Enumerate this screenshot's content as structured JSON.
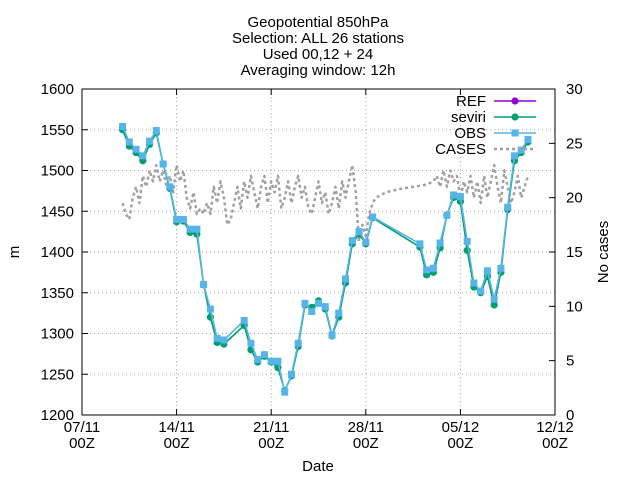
{
  "chart_data": {
    "type": "line",
    "title": [
      "Geopotential 850hPa",
      "Selection: ALL     26 stations",
      "Used 00,12 + 24",
      "Averaging window: 12h"
    ],
    "xlabel": "Date",
    "ylabel": "m",
    "y2label": "No cases",
    "xlim": [
      "2023-11-07T00:00",
      "2023-12-12T00:00"
    ],
    "ylim": [
      1200,
      1600
    ],
    "y2lim": [
      0,
      30
    ],
    "xticks": [
      {
        "x": "2023-11-07T00:00",
        "line1": "07/11",
        "line2": "00Z"
      },
      {
        "x": "2023-11-14T00:00",
        "line1": "14/11",
        "line2": "00Z"
      },
      {
        "x": "2023-11-21T00:00",
        "line1": "21/11",
        "line2": "00Z"
      },
      {
        "x": "2023-11-28T00:00",
        "line1": "28/11",
        "line2": "00Z"
      },
      {
        "x": "2023-12-05T00:00",
        "line1": "05/12",
        "line2": "00Z"
      },
      {
        "x": "2023-12-12T00:00",
        "line1": "12/12",
        "line2": "00Z"
      }
    ],
    "yticks": [
      1200,
      1250,
      1300,
      1350,
      1400,
      1450,
      1500,
      1550,
      1600
    ],
    "y2ticks": [
      0,
      5,
      10,
      15,
      20,
      25,
      30
    ],
    "grid": true,
    "legend_position": "top-right",
    "series": [
      {
        "name": "REF",
        "color": "#9400d3",
        "marker": "filled-circle",
        "axis": "y",
        "points": [
          [
            "2023-11-10T00:00",
            1552
          ]
        ]
      },
      {
        "name": "seviri",
        "color": "#009e73",
        "marker": "filled-circle",
        "axis": "y",
        "points": [
          [
            "2023-11-10T00:00",
            1550
          ],
          [
            "2023-11-10T12:00",
            1530
          ],
          [
            "2023-11-11T00:00",
            1522
          ],
          [
            "2023-11-11T12:00",
            1512
          ],
          [
            "2023-11-12T00:00",
            1532
          ],
          [
            "2023-11-12T12:00",
            1546
          ],
          [
            "2023-11-13T00:00",
            1508
          ],
          [
            "2023-11-13T12:00",
            1478
          ],
          [
            "2023-11-14T00:00",
            1437
          ],
          [
            "2023-11-14T12:00",
            1438
          ],
          [
            "2023-11-15T00:00",
            1424
          ],
          [
            "2023-11-15T12:00",
            1422
          ],
          [
            "2023-11-16T00:00",
            1360
          ],
          [
            "2023-11-16T12:00",
            1320
          ],
          [
            "2023-11-17T00:00",
            1289
          ],
          [
            "2023-11-17T12:00",
            1287
          ],
          [
            "2023-11-19T00:00",
            1310
          ],
          [
            "2023-11-19T12:00",
            1280
          ],
          [
            "2023-11-20T00:00",
            1265
          ],
          [
            "2023-11-20T12:00",
            1272
          ],
          [
            "2023-11-21T00:00",
            1265
          ],
          [
            "2023-11-21T12:00",
            1258
          ],
          [
            "2023-11-22T00:00",
            1230
          ],
          [
            "2023-11-22T12:00",
            1248
          ],
          [
            "2023-11-23T00:00",
            1284
          ],
          [
            "2023-11-23T12:00",
            1335
          ],
          [
            "2023-11-24T00:00",
            1332
          ],
          [
            "2023-11-24T12:00",
            1340
          ],
          [
            "2023-11-25T00:00",
            1330
          ],
          [
            "2023-11-25T12:00",
            1297
          ],
          [
            "2023-11-26T00:00",
            1320
          ],
          [
            "2023-11-26T12:00",
            1362
          ],
          [
            "2023-11-27T00:00",
            1410
          ],
          [
            "2023-11-27T12:00",
            1422
          ],
          [
            "2023-11-28T00:00",
            1410
          ],
          [
            "2023-11-28T12:00",
            1442
          ],
          [
            "2023-12-02T00:00",
            1406
          ],
          [
            "2023-12-02T12:00",
            1372
          ],
          [
            "2023-12-03T00:00",
            1375
          ],
          [
            "2023-12-03T12:00",
            1405
          ],
          [
            "2023-12-04T00:00",
            1445
          ],
          [
            "2023-12-04T12:00",
            1467
          ],
          [
            "2023-12-05T00:00",
            1462
          ],
          [
            "2023-12-05T12:00",
            1402
          ],
          [
            "2023-12-06T00:00",
            1357
          ],
          [
            "2023-12-06T12:00",
            1350
          ],
          [
            "2023-12-07T00:00",
            1370
          ],
          [
            "2023-12-07T12:00",
            1335
          ],
          [
            "2023-12-08T00:00",
            1375
          ],
          [
            "2023-12-08T12:00",
            1452
          ],
          [
            "2023-12-09T00:00",
            1512
          ],
          [
            "2023-12-09T12:00",
            1522
          ],
          [
            "2023-12-10T00:00",
            1535
          ]
        ]
      },
      {
        "name": "OBS",
        "color": "#56b4e9",
        "marker": "filled-square",
        "axis": "y",
        "points": [
          [
            "2023-11-10T00:00",
            1554
          ],
          [
            "2023-11-10T12:00",
            1535
          ],
          [
            "2023-11-11T00:00",
            1526
          ],
          [
            "2023-11-11T12:00",
            1518
          ],
          [
            "2023-11-12T00:00",
            1536
          ],
          [
            "2023-11-12T12:00",
            1549
          ],
          [
            "2023-11-13T00:00",
            1508
          ],
          [
            "2023-11-13T12:00",
            1480
          ],
          [
            "2023-11-14T00:00",
            1440
          ],
          [
            "2023-11-14T12:00",
            1440
          ],
          [
            "2023-11-15T00:00",
            1428
          ],
          [
            "2023-11-15T12:00",
            1428
          ],
          [
            "2023-11-16T00:00",
            1360
          ],
          [
            "2023-11-16T12:00",
            1330
          ],
          [
            "2023-11-17T00:00",
            1294
          ],
          [
            "2023-11-17T12:00",
            1292
          ],
          [
            "2023-11-19T00:00",
            1316
          ],
          [
            "2023-11-19T12:00",
            1288
          ],
          [
            "2023-11-20T00:00",
            1268
          ],
          [
            "2023-11-20T12:00",
            1274
          ],
          [
            "2023-11-21T00:00",
            1266
          ],
          [
            "2023-11-21T12:00",
            1266
          ],
          [
            "2023-11-22T00:00",
            1228
          ],
          [
            "2023-11-22T12:00",
            1250
          ],
          [
            "2023-11-23T00:00",
            1288
          ],
          [
            "2023-11-23T12:00",
            1337
          ],
          [
            "2023-11-24T00:00",
            1327
          ],
          [
            "2023-11-24T12:00",
            1337
          ],
          [
            "2023-11-25T00:00",
            1333
          ],
          [
            "2023-11-25T12:00",
            1298
          ],
          [
            "2023-11-26T00:00",
            1325
          ],
          [
            "2023-11-26T12:00",
            1367
          ],
          [
            "2023-11-27T00:00",
            1414
          ],
          [
            "2023-11-27T12:00",
            1425
          ],
          [
            "2023-11-28T00:00",
            1412
          ],
          [
            "2023-11-28T12:00",
            1443
          ],
          [
            "2023-12-02T00:00",
            1410
          ],
          [
            "2023-12-02T12:00",
            1378
          ],
          [
            "2023-12-03T00:00",
            1380
          ],
          [
            "2023-12-03T12:00",
            1411
          ],
          [
            "2023-12-04T00:00",
            1445
          ],
          [
            "2023-12-04T12:00",
            1470
          ],
          [
            "2023-12-05T00:00",
            1468
          ],
          [
            "2023-12-05T12:00",
            1413
          ],
          [
            "2023-12-06T00:00",
            1362
          ],
          [
            "2023-12-06T12:00",
            1352
          ],
          [
            "2023-12-07T00:00",
            1377
          ],
          [
            "2023-12-07T12:00",
            1342
          ],
          [
            "2023-12-08T00:00",
            1380
          ],
          [
            "2023-12-08T12:00",
            1455
          ],
          [
            "2023-12-09T00:00",
            1518
          ],
          [
            "2023-12-09T12:00",
            1525
          ],
          [
            "2023-12-10T00:00",
            1538
          ]
        ]
      },
      {
        "name": "CASES",
        "color": "#a0a0a0",
        "marker": "none",
        "dashed": true,
        "axis": "y2",
        "points": [
          [
            "2023-11-10T00:00",
            19.5
          ],
          [
            "2023-11-10T06:00",
            18.5
          ],
          [
            "2023-11-10T12:00",
            18.0
          ],
          [
            "2023-11-10T18:00",
            20.0
          ],
          [
            "2023-11-11T00:00",
            21.0
          ],
          [
            "2023-11-11T06:00",
            19.5
          ],
          [
            "2023-11-11T12:00",
            22.0
          ],
          [
            "2023-11-11T18:00",
            21.0
          ],
          [
            "2023-11-12T00:00",
            22.5
          ],
          [
            "2023-11-12T06:00",
            21.5
          ],
          [
            "2023-11-12T12:00",
            23.0
          ],
          [
            "2023-11-12T18:00",
            21.5
          ],
          [
            "2023-11-13T00:00",
            22.5
          ],
          [
            "2023-11-13T06:00",
            21.0
          ],
          [
            "2023-11-13T12:00",
            22.0
          ],
          [
            "2023-11-13T18:00",
            20.5
          ],
          [
            "2023-11-14T00:00",
            23.0
          ],
          [
            "2023-11-14T06:00",
            21.5
          ],
          [
            "2023-11-14T12:00",
            22.5
          ],
          [
            "2023-11-14T18:00",
            20.0
          ],
          [
            "2023-11-15T00:00",
            19.0
          ],
          [
            "2023-11-15T06:00",
            20.5
          ],
          [
            "2023-11-15T12:00",
            18.5
          ],
          [
            "2023-11-15T18:00",
            19.0
          ],
          [
            "2023-11-16T00:00",
            18.5
          ],
          [
            "2023-11-16T06:00",
            19.5
          ],
          [
            "2023-11-16T12:00",
            18.5
          ],
          [
            "2023-11-16T18:00",
            21.0
          ],
          [
            "2023-11-17T00:00",
            19.5
          ],
          [
            "2023-11-17T06:00",
            21.5
          ],
          [
            "2023-11-17T12:00",
            20.0
          ],
          [
            "2023-11-17T18:00",
            17.5
          ],
          [
            "2023-11-18T00:00",
            18.0
          ],
          [
            "2023-11-18T06:00",
            19.5
          ],
          [
            "2023-11-18T12:00",
            21.0
          ],
          [
            "2023-11-18T18:00",
            19.0
          ],
          [
            "2023-11-19T00:00",
            21.5
          ],
          [
            "2023-11-19T06:00",
            20.0
          ],
          [
            "2023-11-19T12:00",
            22.0
          ],
          [
            "2023-11-19T18:00",
            20.5
          ],
          [
            "2023-11-20T00:00",
            19.0
          ],
          [
            "2023-11-20T06:00",
            21.0
          ],
          [
            "2023-11-20T12:00",
            22.0
          ],
          [
            "2023-11-20T18:00",
            19.5
          ],
          [
            "2023-11-21T00:00",
            21.5
          ],
          [
            "2023-11-21T06:00",
            20.5
          ],
          [
            "2023-11-21T12:00",
            22.0
          ],
          [
            "2023-11-21T18:00",
            19.0
          ],
          [
            "2023-11-22T00:00",
            20.0
          ],
          [
            "2023-11-22T06:00",
            21.5
          ],
          [
            "2023-11-22T12:00",
            19.5
          ],
          [
            "2023-11-22T18:00",
            21.0
          ],
          [
            "2023-11-23T00:00",
            22.0
          ],
          [
            "2023-11-23T06:00",
            20.0
          ],
          [
            "2023-11-23T12:00",
            21.0
          ],
          [
            "2023-11-23T18:00",
            19.0
          ],
          [
            "2023-11-24T00:00",
            18.5
          ],
          [
            "2023-11-24T06:00",
            20.0
          ],
          [
            "2023-11-24T12:00",
            21.5
          ],
          [
            "2023-11-24T18:00",
            19.5
          ],
          [
            "2023-11-25T00:00",
            20.5
          ],
          [
            "2023-11-25T06:00",
            18.5
          ],
          [
            "2023-11-25T12:00",
            19.5
          ],
          [
            "2023-11-25T18:00",
            21.0
          ],
          [
            "2023-11-26T00:00",
            19.0
          ],
          [
            "2023-11-26T06:00",
            21.5
          ],
          [
            "2023-11-26T12:00",
            20.0
          ],
          [
            "2023-11-26T18:00",
            21.5
          ],
          [
            "2023-11-27T00:00",
            23.0
          ],
          [
            "2023-11-27T06:00",
            20.5
          ],
          [
            "2023-11-27T12:00",
            16.0
          ],
          [
            "2023-11-27T18:00",
            17.5
          ],
          [
            "2023-11-28T00:00",
            16.5
          ],
          [
            "2023-11-28T06:00",
            18.5
          ],
          [
            "2023-11-28T12:00",
            19.5
          ],
          [
            "2023-11-28T18:00",
            20.0
          ],
          [
            "2023-11-29T12:00",
            20.5
          ],
          [
            "2023-11-30T12:00",
            20.8
          ],
          [
            "2023-12-01T12:00",
            21.0
          ],
          [
            "2023-12-02T12:00",
            21.2
          ],
          [
            "2023-12-03T00:00",
            21.5
          ],
          [
            "2023-12-03T06:00",
            22.0
          ],
          [
            "2023-12-03T12:00",
            21.0
          ],
          [
            "2023-12-03T18:00",
            22.5
          ],
          [
            "2023-12-04T00:00",
            21.0
          ],
          [
            "2023-12-04T06:00",
            22.5
          ],
          [
            "2023-12-04T12:00",
            21.5
          ],
          [
            "2023-12-04T18:00",
            22.0
          ],
          [
            "2023-12-05T00:00",
            20.0
          ],
          [
            "2023-12-05T06:00",
            21.5
          ],
          [
            "2023-12-05T12:00",
            20.5
          ],
          [
            "2023-12-05T18:00",
            22.0
          ],
          [
            "2023-12-06T00:00",
            20.0
          ],
          [
            "2023-12-06T06:00",
            21.5
          ],
          [
            "2023-12-06T12:00",
            19.5
          ],
          [
            "2023-12-06T18:00",
            22.0
          ],
          [
            "2023-12-07T00:00",
            20.0
          ],
          [
            "2023-12-07T06:00",
            21.5
          ],
          [
            "2023-12-07T12:00",
            23.0
          ],
          [
            "2023-12-07T18:00",
            21.0
          ],
          [
            "2023-12-08T00:00",
            19.5
          ],
          [
            "2023-12-08T06:00",
            22.5
          ],
          [
            "2023-12-08T12:00",
            21.0
          ],
          [
            "2023-12-08T18:00",
            19.5
          ],
          [
            "2023-12-09T00:00",
            20.5
          ],
          [
            "2023-12-09T06:00",
            22.0
          ],
          [
            "2023-12-09T12:00",
            20.0
          ],
          [
            "2023-12-09T18:00",
            21.0
          ],
          [
            "2023-12-10T00:00",
            22.0
          ]
        ]
      }
    ]
  }
}
